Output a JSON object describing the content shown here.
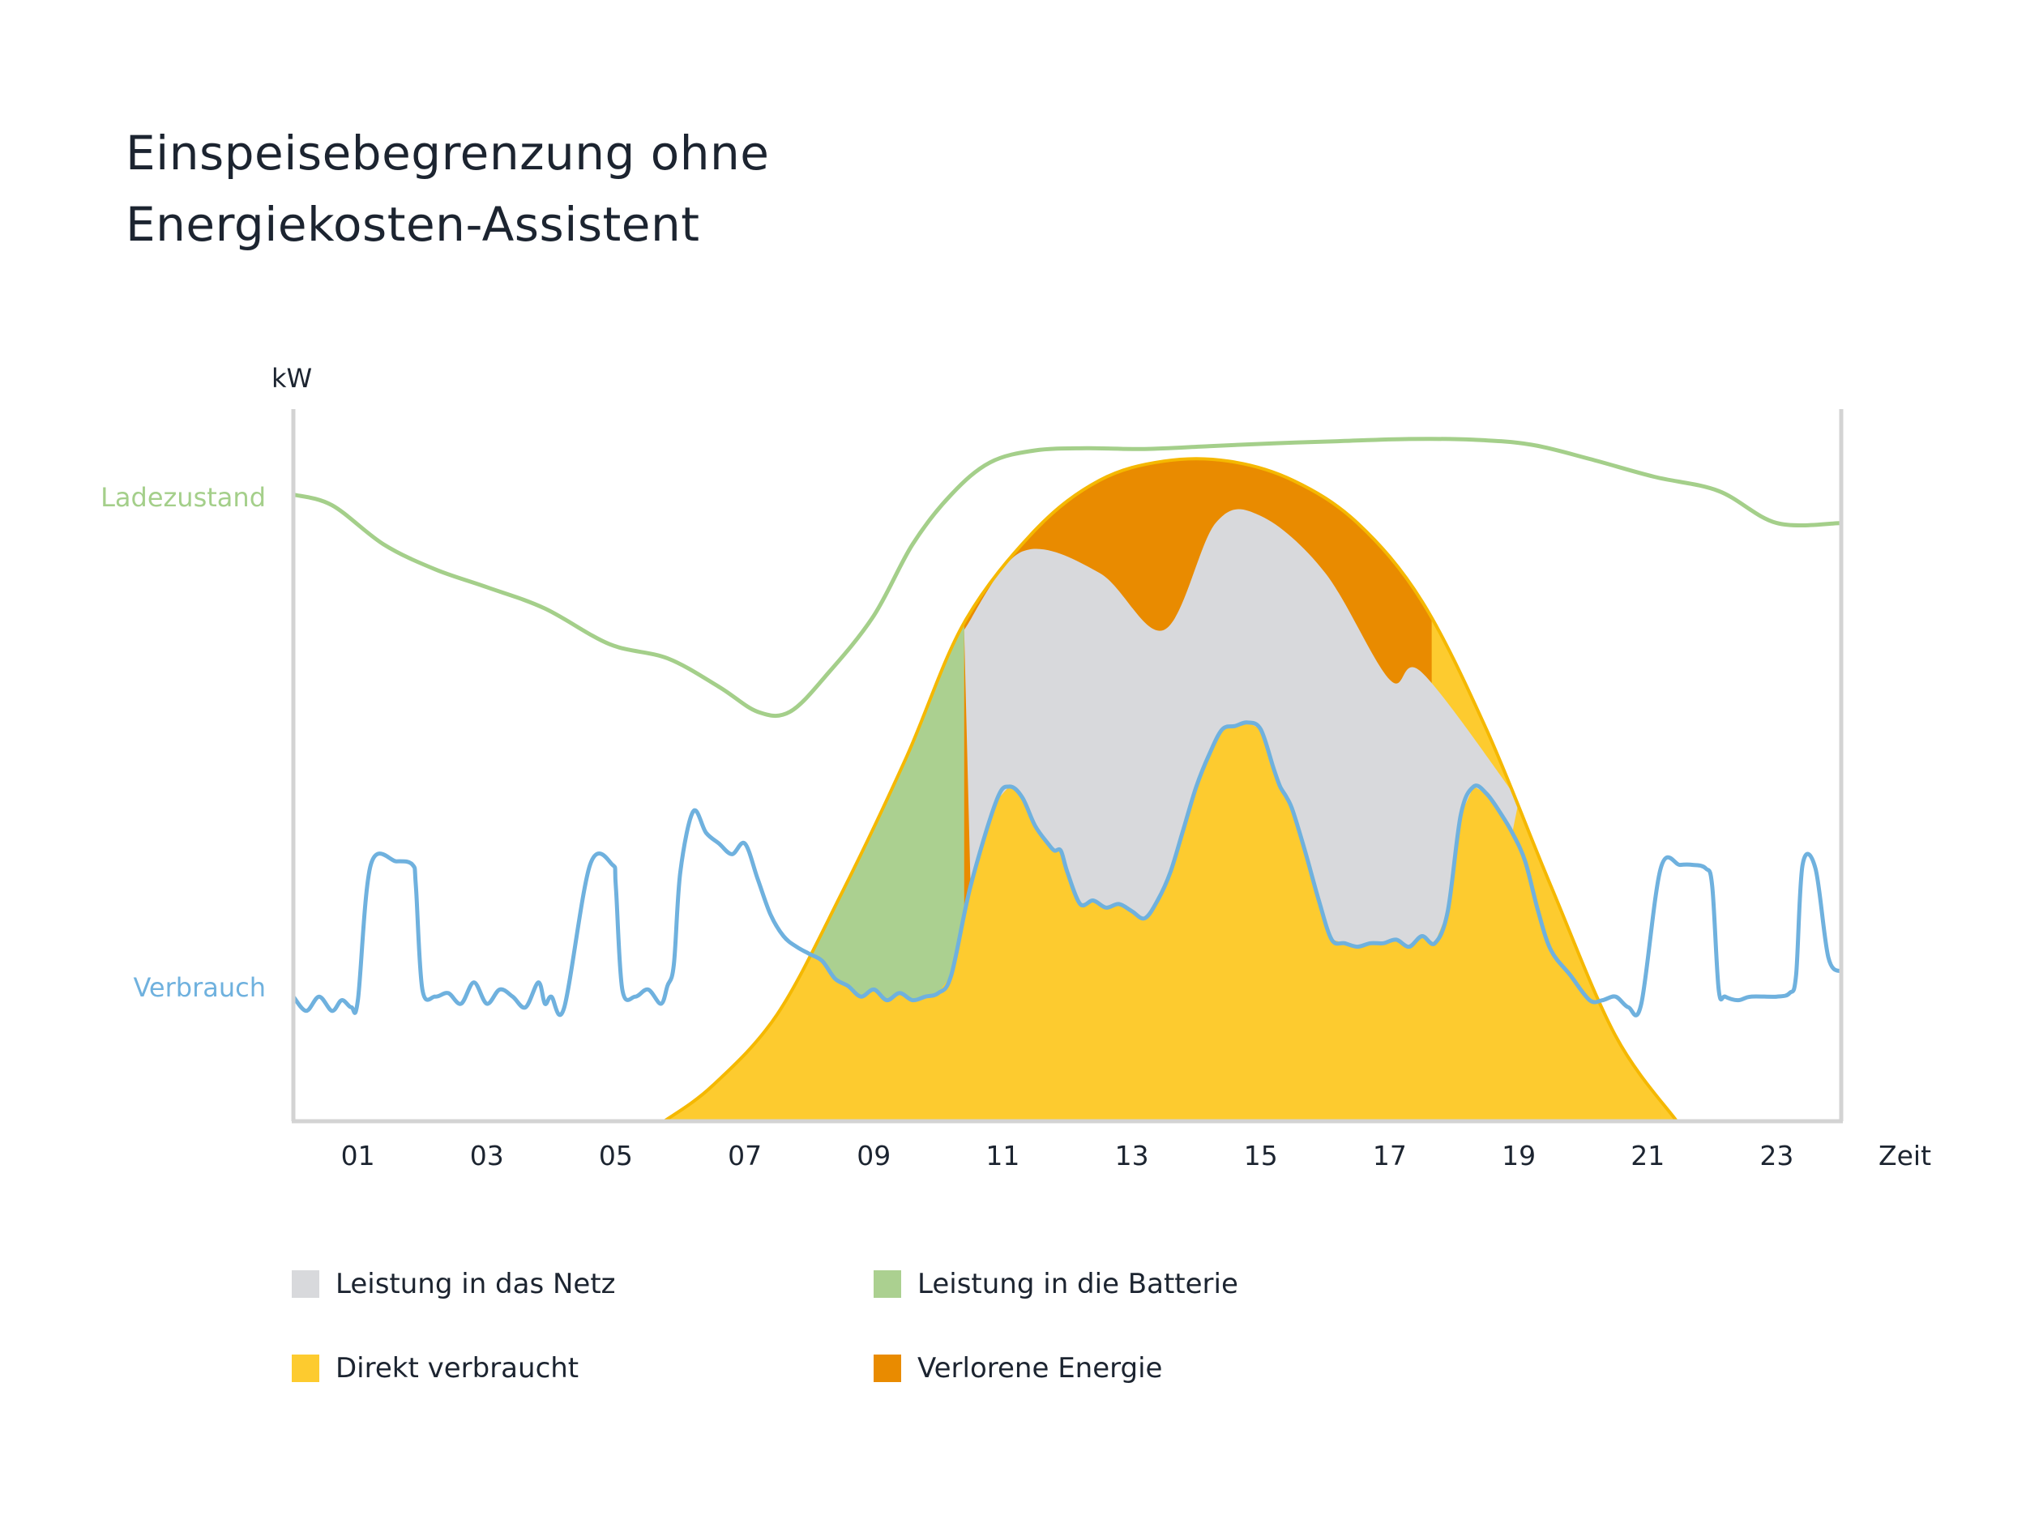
{
  "title_lines": [
    "Einspeisebegrenzung ohne",
    "Energiekosten-Assistent"
  ],
  "colors": {
    "netz": "#d8d9dc",
    "batterie": "#abd090",
    "direkt": "#fdcb2f",
    "verloren": "#e98b00",
    "ladezustand": "#a4cf8a",
    "verbrauch": "#6fb1de",
    "axis": "#d3d3d3",
    "pv_outline": "#f5b800"
  },
  "chart_data": {
    "type": "area",
    "ylabel": "kW",
    "xlabel": "Zeit",
    "xlim": [
      0,
      24
    ],
    "ylim": [
      0,
      10
    ],
    "x_ticks": [
      "01",
      "03",
      "05",
      "07",
      "09",
      "11",
      "13",
      "15",
      "17",
      "19",
      "21",
      "23"
    ],
    "y_side_labels": [
      {
        "key": "ladezustand",
        "text": "Ladezustand"
      },
      {
        "key": "verbrauch",
        "text": "Verbrauch"
      }
    ],
    "series": [
      {
        "name": "Ladezustand",
        "type": "line",
        "x": [
          0,
          0.6,
          1.4,
          2.2,
          3.0,
          3.9,
          4.9,
          5.8,
          6.6,
          7.2,
          7.7,
          8.3,
          9.0,
          9.6,
          10.2,
          10.8,
          11.5,
          12.3,
          13.2,
          14.2,
          15.2,
          16.2,
          17.3,
          18.3,
          19.2,
          20.1,
          21.1,
          22.1,
          23.0,
          24.0
        ],
        "values": [
          8.8,
          8.65,
          8.1,
          7.75,
          7.5,
          7.2,
          6.7,
          6.5,
          6.1,
          5.75,
          5.75,
          6.3,
          7.1,
          8.1,
          8.8,
          9.25,
          9.42,
          9.45,
          9.44,
          9.48,
          9.52,
          9.55,
          9.58,
          9.57,
          9.5,
          9.3,
          9.05,
          8.85,
          8.4,
          8.4
        ]
      },
      {
        "name": "Verbrauch",
        "type": "line",
        "x": [
          0,
          0.2,
          0.4,
          0.6,
          0.75,
          0.9,
          1.0,
          1.2,
          1.6,
          1.85,
          1.9,
          2.0,
          2.2,
          2.4,
          2.6,
          2.8,
          3.0,
          3.2,
          3.4,
          3.6,
          3.8,
          3.9,
          4.0,
          4.2,
          4.6,
          4.95,
          5.0,
          5.1,
          5.3,
          5.5,
          5.7,
          5.8,
          5.9,
          6.0,
          6.2,
          6.4,
          6.6,
          6.8,
          7.0,
          7.2,
          7.4,
          7.6,
          7.8,
          8.0,
          8.2,
          8.4,
          8.6,
          8.8,
          9.0,
          9.2,
          9.4,
          9.6,
          9.8,
          10.0,
          10.2,
          10.5,
          10.9,
          11.1,
          11.3,
          11.5,
          11.7,
          11.8,
          11.9,
          12.0,
          12.2,
          12.4,
          12.6,
          12.8,
          13.0,
          13.2,
          13.4,
          13.6,
          13.8,
          14.0,
          14.2,
          14.4,
          14.6,
          14.8,
          15.0,
          15.2,
          15.3,
          15.4,
          15.5,
          15.7,
          15.9,
          16.1,
          16.3,
          16.5,
          16.7,
          16.9,
          17.1,
          17.3,
          17.5,
          17.7,
          17.9,
          18.1,
          18.3,
          18.5,
          18.7,
          18.9,
          19.1,
          19.3,
          19.5,
          19.8,
          20.1,
          20.3,
          20.5,
          20.7,
          20.9,
          21.2,
          21.5,
          21.7,
          21.9,
          22.0,
          22.1,
          22.2,
          22.4,
          22.6,
          23.0,
          23.2,
          23.3,
          23.4,
          23.6,
          23.8,
          24.0
        ],
        "values": [
          1.75,
          1.55,
          1.75,
          1.55,
          1.7,
          1.6,
          1.7,
          3.6,
          3.65,
          3.6,
          3.3,
          1.85,
          1.75,
          1.8,
          1.65,
          1.95,
          1.65,
          1.85,
          1.75,
          1.6,
          1.95,
          1.65,
          1.75,
          1.6,
          3.6,
          3.6,
          3.3,
          1.85,
          1.75,
          1.85,
          1.65,
          1.9,
          2.2,
          3.5,
          4.35,
          4.05,
          3.9,
          3.75,
          3.9,
          3.4,
          2.9,
          2.6,
          2.45,
          2.35,
          2.25,
          2.0,
          1.9,
          1.75,
          1.85,
          1.7,
          1.8,
          1.7,
          1.75,
          1.8,
          2.05,
          3.3,
          4.5,
          4.7,
          4.55,
          4.15,
          3.9,
          3.8,
          3.8,
          3.5,
          3.05,
          3.1,
          3.0,
          3.05,
          2.95,
          2.85,
          3.1,
          3.5,
          4.1,
          4.7,
          5.15,
          5.5,
          5.55,
          5.6,
          5.5,
          4.95,
          4.7,
          4.55,
          4.35,
          3.75,
          3.1,
          2.55,
          2.5,
          2.45,
          2.5,
          2.5,
          2.55,
          2.45,
          2.6,
          2.5,
          2.95,
          4.3,
          4.7,
          4.6,
          4.35,
          4.05,
          3.65,
          2.95,
          2.4,
          2.05,
          1.7,
          1.7,
          1.75,
          1.6,
          1.65,
          3.55,
          3.6,
          3.6,
          3.55,
          3.3,
          1.85,
          1.75,
          1.7,
          1.75,
          1.75,
          1.8,
          2.05,
          3.6,
          3.55,
          2.3,
          2.1
        ]
      },
      {
        "name": "Direkt verbraucht",
        "type": "area",
        "x": [
          5.75,
          6.5,
          7.5,
          8.5,
          9.5,
          10.4,
          11.5,
          12.5,
          13.5,
          14.5,
          15.5,
          16.5,
          17.5,
          18.5,
          19.5,
          20.5,
          21.45
        ],
        "values": [
          0.0,
          0.5,
          1.5,
          3.2,
          5.1,
          7.0,
          8.3,
          9.0,
          9.27,
          9.27,
          9.0,
          8.4,
          7.3,
          5.5,
          3.3,
          1.2,
          0.0
        ]
      },
      {
        "name": "Leistung in die Batterie",
        "type": "area",
        "x": [
          7.8,
          10.4
        ],
        "values": [
          2.6,
          7.0
        ]
      },
      {
        "name": "Leistung in das Netz",
        "type": "area",
        "x": [
          10.4,
          11.3,
          12.5,
          13.5,
          14.3,
          15.0,
          16.0,
          17.0,
          17.5,
          19.0
        ],
        "values": [
          6.9,
          8.0,
          7.7,
          6.9,
          8.4,
          8.5,
          7.7,
          6.2,
          6.3,
          4.5
        ]
      },
      {
        "name": "Verlorene Energie",
        "type": "area",
        "x": [
          10.4,
          11.5,
          12.5,
          13.5,
          14.3,
          15.0,
          16.0,
          17.0,
          17.6
        ],
        "values": [
          0.3,
          0.4,
          1.3,
          2.4,
          0.5,
          0.5,
          1.4,
          2.8,
          1.0
        ]
      }
    ],
    "legend_position": "bottom",
    "grid": false
  },
  "legend": [
    {
      "key": "netz",
      "label": "Leistung in das Netz"
    },
    {
      "key": "batterie",
      "label": "Leistung in die Batterie"
    },
    {
      "key": "direkt",
      "label": "Direkt verbraucht"
    },
    {
      "key": "verloren",
      "label": "Verlorene Energie"
    }
  ]
}
